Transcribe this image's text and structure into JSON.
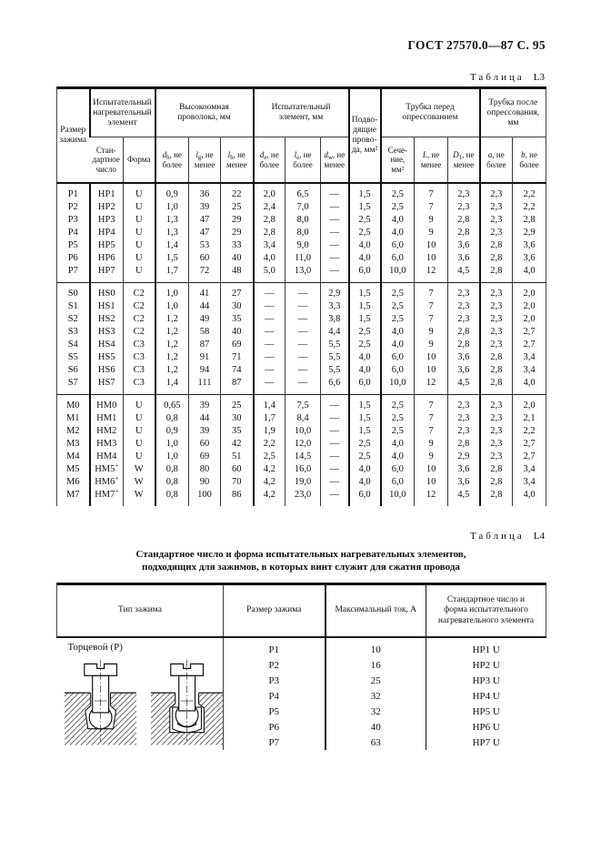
{
  "page": {
    "doc_header": "ГОСТ 27570.0—87 С. 95"
  },
  "table_l3": {
    "caption_word": "Таблица",
    "caption_num": "L3",
    "col_groups": {
      "size": "Размер\nзажима",
      "element": "Испытательный\nнагревательный\nэлемент",
      "wire": "Высокоомная\nпроволока, мм",
      "test_element": "Испытательный\nэлемент, мм",
      "leads": "Подво-\nдящие\nпрово-\nда, мм²",
      "tube_before": "Трубка перед\nопрессованием",
      "tube_after": "Трубка после\nопрессования,\nмм"
    },
    "sub_columns": [
      "Стан-\nдартное\nчисло",
      "Форма",
      "*d*_{h}, не более",
      "*l*_{g}, не менее",
      "*l*_{h}, не менее",
      "*d*_{e}, не более",
      "*l*_{e}, не более",
      "*d*_{w}, не менее",
      "Сече-\nние,\nмм²",
      "*L*, не менее",
      "*D*_{1}, не менее",
      "*a*, не более",
      "*b*, не более"
    ],
    "blocks": [
      [
        [
          "P1",
          "HP1",
          "U",
          "0,9",
          "36",
          "22",
          "2,0",
          "6,5",
          "—",
          "1,5",
          "2,5",
          "7",
          "2,3",
          "2,3",
          "2,2"
        ],
        [
          "P2",
          "HP2",
          "U",
          "1,0",
          "39",
          "25",
          "2,4",
          "7,0",
          "—",
          "1,5",
          "2,5",
          "7",
          "2,3",
          "2,3",
          "2,2"
        ],
        [
          "P3",
          "HP3",
          "U",
          "1,3",
          "47",
          "29",
          "2,8",
          "8,0",
          "—",
          "2,5",
          "4,0",
          "9",
          "2,8",
          "2,3",
          "2,8"
        ],
        [
          "P4",
          "HP4",
          "U",
          "1,3",
          "47",
          "29",
          "2,8",
          "8,0",
          "—",
          "2,5",
          "4,0",
          "9",
          "2,8",
          "2,3",
          "2,9"
        ],
        [
          "P5",
          "HP5",
          "U",
          "1,4",
          "53",
          "33",
          "3,4",
          "9,0",
          "—",
          "4,0",
          "6,0",
          "10",
          "3,6",
          "2,8",
          "3,6"
        ],
        [
          "P6",
          "HP6",
          "U",
          "1,5",
          "60",
          "40",
          "4,0",
          "11,0",
          "—",
          "4,0",
          "6,0",
          "10",
          "3,6",
          "2,8",
          "3,6"
        ],
        [
          "P7",
          "HP7",
          "U",
          "1,7",
          "72",
          "48",
          "5,0",
          "13,0",
          "—",
          "6,0",
          "10,0",
          "12",
          "4,5",
          "2,8",
          "4,0"
        ]
      ],
      [
        [
          "S0",
          "HS0",
          "C2",
          "1,0",
          "41",
          "27",
          "—",
          "—",
          "2,9",
          "1,5",
          "2,5",
          "7",
          "2,3",
          "2,3",
          "2,0"
        ],
        [
          "S1",
          "HS1",
          "C2",
          "1,0",
          "44",
          "30",
          "—",
          "—",
          "3,3",
          "1,5",
          "2,5",
          "7",
          "2,3",
          "2,3",
          "2,0"
        ],
        [
          "S2",
          "HS2",
          "C2",
          "1,2",
          "49",
          "35",
          "—",
          "—",
          "3,8",
          "1,5",
          "2,5",
          "7",
          "2,3",
          "2,3",
          "2,0"
        ],
        [
          "S3",
          "HS3",
          "C2",
          "1,2",
          "58",
          "40",
          "—",
          "—",
          "4,4",
          "2,5",
          "4,0",
          "9",
          "2,8",
          "2,3",
          "2,7"
        ],
        [
          "S4",
          "HS4",
          "C3",
          "1,2",
          "87",
          "69",
          "—",
          "—",
          "5,5",
          "2,5",
          "4,0",
          "9",
          "2,8",
          "2,3",
          "2,7"
        ],
        [
          "S5",
          "HS5",
          "C3",
          "1,2",
          "91",
          "71",
          "—",
          "—",
          "5,5",
          "4,0",
          "6,0",
          "10",
          "3,6",
          "2,8",
          "3,4"
        ],
        [
          "S6",
          "HS6",
          "C3",
          "1,2",
          "94",
          "74",
          "—",
          "—",
          "5,5",
          "4,0",
          "6,0",
          "10",
          "3,6",
          "2,8",
          "3,4"
        ],
        [
          "S7",
          "HS7",
          "C3",
          "1,4",
          "111",
          "87",
          "—",
          "—",
          "6,6",
          "6,0",
          "10,0",
          "12",
          "4,5",
          "2,8",
          "4,0"
        ]
      ],
      [
        [
          "M0",
          "HM0",
          "U",
          "0,65",
          "39",
          "25",
          "1,4",
          "7,5",
          "—",
          "1,5",
          "2,5",
          "7",
          "2,3",
          "2,3",
          "2,0"
        ],
        [
          "M1",
          "HM1",
          "U",
          "0,8",
          "44",
          "30",
          "1,7",
          "8,4",
          "—",
          "1,5",
          "2,5",
          "7",
          "2,3",
          "2,3",
          "2,1"
        ],
        [
          "M2",
          "HM2",
          "U",
          "0,9",
          "39",
          "35",
          "1,9",
          "10,0",
          "—",
          "1,5",
          "2,5",
          "7",
          "2,3",
          "2,3",
          "2,2"
        ],
        [
          "M3",
          "HM3",
          "U",
          "1,0",
          "60",
          "42",
          "2,2",
          "12,0",
          "—",
          "2,5",
          "4,0",
          "9",
          "2,8",
          "2,3",
          "2,7"
        ],
        [
          "M4",
          "HM4",
          "U",
          "1,0",
          "69",
          "51",
          "2,5",
          "14,5",
          "—",
          "2,5",
          "4,0",
          "9",
          "2,9",
          "2,3",
          "2,7"
        ],
        [
          "M5",
          "HM5^{+}",
          "W",
          "0,8",
          "80",
          "60",
          "4,2",
          "16,0",
          "—",
          "4,0",
          "6,0",
          "10",
          "3,6",
          "2,8",
          "3,4"
        ],
        [
          "M6",
          "HM6^{+}",
          "W",
          "0,8",
          "90",
          "70",
          "4,2",
          "19,0",
          "—",
          "4,0",
          "6,0",
          "10",
          "3,6",
          "2,8",
          "3,4"
        ],
        [
          "M7",
          "HM7^{+}",
          "W",
          "0,8",
          "100",
          "86",
          "4,2",
          "23,0",
          "—",
          "6,0",
          "10,0",
          "12",
          "4,5",
          "2,8",
          "4,0"
        ]
      ]
    ]
  },
  "table_l4": {
    "caption_word": "Таблица",
    "caption_num": "L4",
    "title": "Стандартное число и форма испытательных нагревательных элементов,\nподходящих для зажимов, в которых винт служит для сжатия провода",
    "columns": [
      "Тип зажима",
      "Размер зажима",
      "Максимальный ток, А",
      "Стандартное число и\nформа испытательного\nнагревательного элемента"
    ],
    "clamp_type": "Торцевой (Р)",
    "rows": [
      [
        "P1",
        "10",
        "HP1 U"
      ],
      [
        "P2",
        "16",
        "HP2 U"
      ],
      [
        "P3",
        "25",
        "HP3 U"
      ],
      [
        "P4",
        "32",
        "HP4 U"
      ],
      [
        "P5",
        "32",
        "HP5 U"
      ],
      [
        "P6",
        "40",
        "HP6 U"
      ],
      [
        "P7",
        "63",
        "HP7 U"
      ]
    ]
  }
}
